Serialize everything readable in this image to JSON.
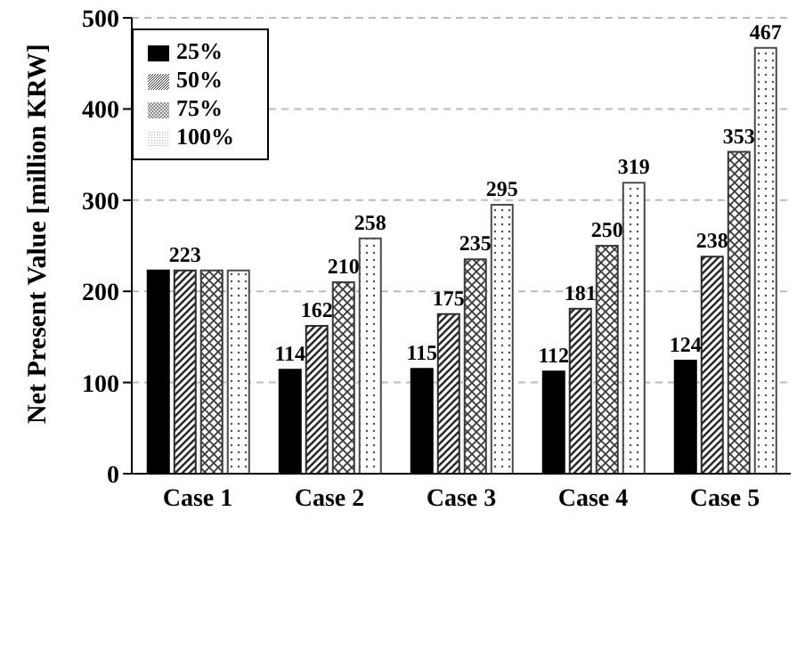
{
  "chart_data": {
    "type": "bar",
    "ylabel": "Net Present Value [million KRW]",
    "categories": [
      "Case 1",
      "Case 2",
      "Case 3",
      "Case 4",
      "Case 5"
    ],
    "series": [
      {
        "name": "25%",
        "color": "#000000",
        "values": [
          223,
          114,
          115,
          112,
          124
        ],
        "value_labels": [
          null,
          "114",
          "115",
          "112",
          "124"
        ]
      },
      {
        "name": "50%",
        "color": "#2a2a2a",
        "values": [
          223,
          162,
          175,
          181,
          238
        ],
        "value_labels": [
          "223",
          "162",
          "175",
          "181",
          "238"
        ]
      },
      {
        "name": "75%",
        "color": "#3a3a3a",
        "values": [
          223,
          210,
          235,
          250,
          353
        ],
        "value_labels": [
          null,
          "210",
          "235",
          "250",
          "353"
        ]
      },
      {
        "name": "100%",
        "color": "#4a4a4a",
        "values": [
          223,
          258,
          295,
          319,
          467
        ],
        "value_labels": [
          null,
          "258",
          "295",
          "319",
          "467"
        ]
      }
    ],
    "ylim": [
      0,
      500
    ],
    "yticks": [
      0,
      100,
      200,
      300,
      400,
      500
    ],
    "grid": "y",
    "legend": "top left"
  }
}
